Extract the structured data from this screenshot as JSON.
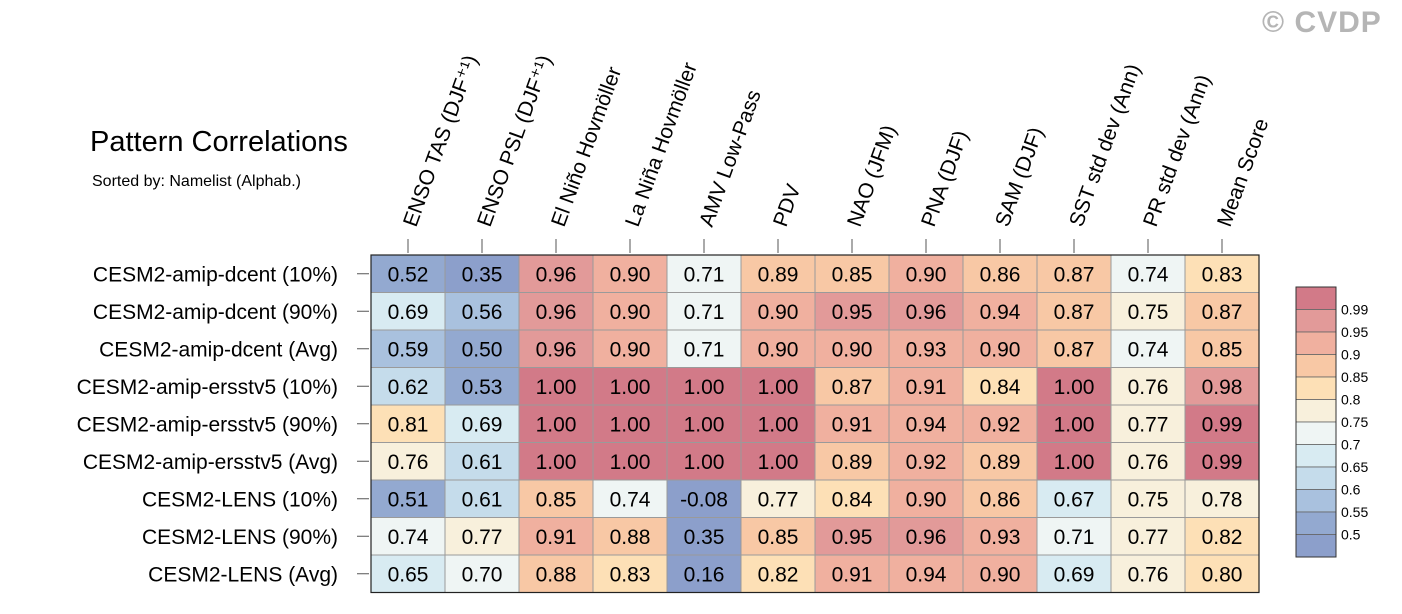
{
  "watermark": "© CVDP",
  "chart_data": {
    "type": "heatmap",
    "title": "Pattern Correlations",
    "subtitle": "Sorted by: Namelist (Alphab.)",
    "columns": [
      "ENSO TAS (DJF⁺¹)",
      "ENSO PSL (DJF⁺¹)",
      "El Niño Hovmöller",
      "La Niña Hovmöller",
      "AMV Low-Pass",
      "PDV",
      "NAO (JFM)",
      "PNA (DJF)",
      "SAM (DJF)",
      "SST std dev (Ann)",
      "PR std dev (Ann)",
      "Mean Score"
    ],
    "rows": [
      "CESM2-amip-dcent (10%)",
      "CESM2-amip-dcent (90%)",
      "CESM2-amip-dcent (Avg)",
      "CESM2-amip-ersstv5 (10%)",
      "CESM2-amip-ersstv5 (90%)",
      "CESM2-amip-ersstv5 (Avg)",
      "CESM2-LENS (10%)",
      "CESM2-LENS (90%)",
      "CESM2-LENS (Avg)"
    ],
    "values": [
      [
        "0.52",
        "0.35",
        "0.96",
        "0.90",
        "0.71",
        "0.89",
        "0.85",
        "0.90",
        "0.86",
        "0.87",
        "0.74",
        "0.83"
      ],
      [
        "0.69",
        "0.56",
        "0.96",
        "0.90",
        "0.71",
        "0.90",
        "0.95",
        "0.96",
        "0.94",
        "0.87",
        "0.75",
        "0.87"
      ],
      [
        "0.59",
        "0.50",
        "0.96",
        "0.90",
        "0.71",
        "0.90",
        "0.90",
        "0.93",
        "0.90",
        "0.87",
        "0.74",
        "0.85"
      ],
      [
        "0.62",
        "0.53",
        "1.00",
        "1.00",
        "1.00",
        "1.00",
        "0.87",
        "0.91",
        "0.84",
        "1.00",
        "0.76",
        "0.98"
      ],
      [
        "0.81",
        "0.69",
        "1.00",
        "1.00",
        "1.00",
        "1.00",
        "0.91",
        "0.94",
        "0.92",
        "1.00",
        "0.77",
        "0.99"
      ],
      [
        "0.76",
        "0.61",
        "1.00",
        "1.00",
        "1.00",
        "1.00",
        "0.89",
        "0.92",
        "0.89",
        "1.00",
        "0.76",
        "0.99"
      ],
      [
        "0.51",
        "0.61",
        "0.85",
        "0.74",
        "-0.08",
        "0.77",
        "0.84",
        "0.90",
        "0.86",
        "0.67",
        "0.75",
        "0.78"
      ],
      [
        "0.74",
        "0.77",
        "0.91",
        "0.88",
        "0.35",
        "0.85",
        "0.95",
        "0.96",
        "0.93",
        "0.71",
        "0.77",
        "0.82"
      ],
      [
        "0.65",
        "0.70",
        "0.88",
        "0.83",
        "0.16",
        "0.82",
        "0.91",
        "0.94",
        "0.90",
        "0.69",
        "0.76",
        "0.80"
      ]
    ],
    "colorbar": {
      "labels": [
        "0.99",
        "0.95",
        "0.9",
        "0.85",
        "0.8",
        "0.75",
        "0.7",
        "0.65",
        "0.6",
        "0.55",
        "0.5"
      ],
      "colors": [
        "#d27a88",
        "#e29a99",
        "#f0b09f",
        "#f8c8a5",
        "#fde0b6",
        "#f8f0dc",
        "#eff5f4",
        "#d8ebf2",
        "#c5dceb",
        "#a9c1de",
        "#93a9d0",
        "#8c9fcb"
      ]
    }
  }
}
